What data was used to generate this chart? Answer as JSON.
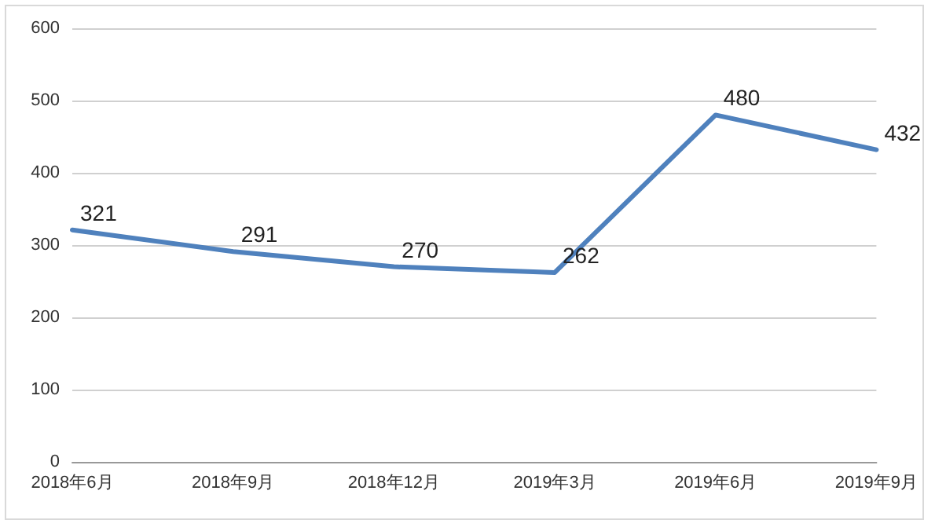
{
  "chart_data": {
    "type": "line",
    "categories": [
      "2018年6月",
      "2018年9月",
      "2018年12月",
      "2019年3月",
      "2019年6月",
      "2019年9月"
    ],
    "series": [
      {
        "color": "#4f81bd",
        "values": [
          321,
          291,
          270,
          262,
          480,
          432
        ]
      }
    ],
    "ylim": [
      0,
      600
    ],
    "yticks": [
      0,
      100,
      200,
      300,
      400,
      500,
      600
    ],
    "grid": "y",
    "data_labels": true,
    "marker": "none",
    "line_style": "solid"
  }
}
